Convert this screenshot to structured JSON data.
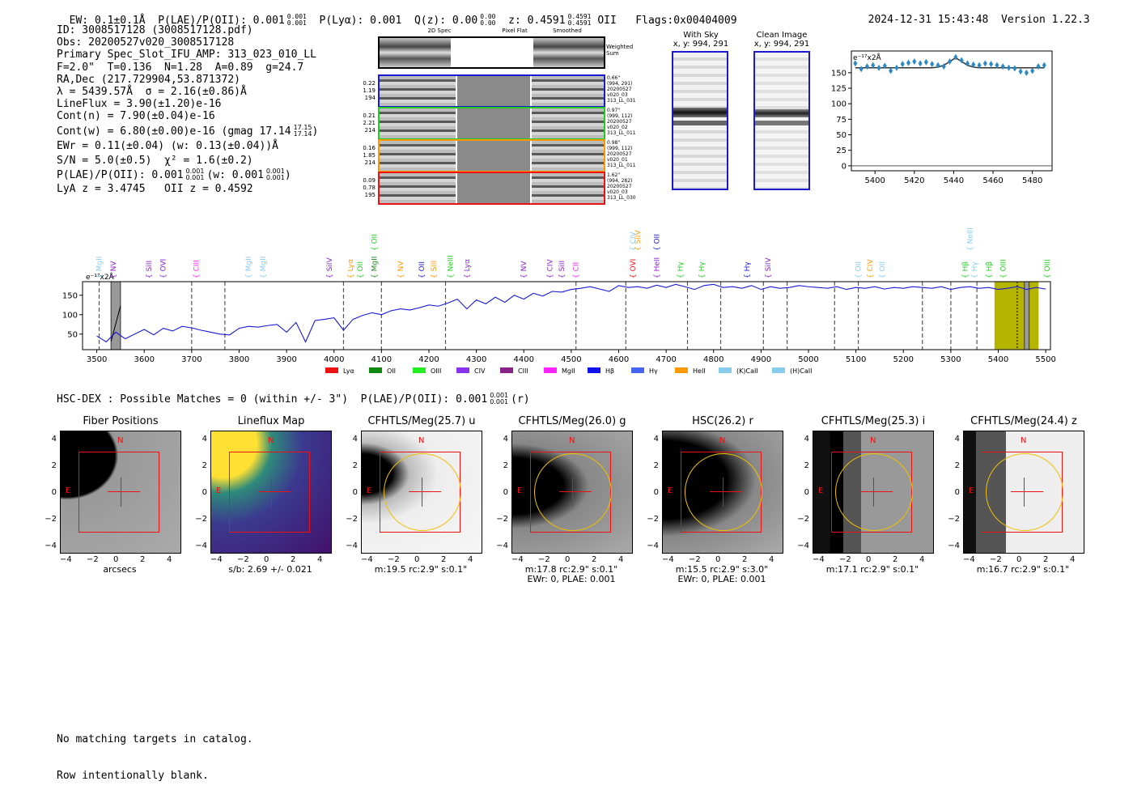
{
  "header": {
    "ew": "EW: 0.1±0.1Å",
    "plae": "P(LAE)/P(OII): 0.001",
    "plae_sup": "0.001",
    "plae_sub": "0.001",
    "plya": "P(Lyα): 0.001",
    "qz": "Q(z): 0.00",
    "qz_sup": "0.00",
    "qz_sub": "0.00",
    "z": "z: 0.4591",
    "z_sup": "0.4591",
    "z_sub": "0.4591",
    "z_line": "OII",
    "flags": "Flags:0x00404009",
    "timestamp": "2024-12-31 15:43:48",
    "version": "Version 1.22.3"
  },
  "info": {
    "lines": [
      "ID: 3008517128 (3008517128.pdf)",
      "Obs: 20200527v020_3008517128",
      "Primary Spec_Slot_IFU_AMP: 313_023_010_LL",
      "F=2.0\"  T=0.136  N=1.28  A=0.89  g=24.7",
      "RA,Dec (217.729904,53.871372)",
      "λ = 5439.57Å  σ = 2.16(±0.86)Å",
      "LineFlux = 3.90(±1.20)e-16",
      "Cont(n) = 7.90(±0.04)e-16"
    ],
    "contw": "Cont(w) = 6.80(±0.00)e-16 (gmag 17.14",
    "contw_sup": "17.15",
    "contw_sub": "17.14",
    "ewr": "EWr = 0.11(±0.04) (w: 0.13(±0.04))Å",
    "sn": "S/N = 5.0(±0.5)  χ² = 1.6(±0.2)",
    "plae2": "P(LAE)/P(OII): 0.001",
    "plae2_sup": "0.001",
    "plae2_sub": "0.001",
    "plae2_w": "(w: 0.001",
    "plae2_w_sup": "0.001",
    "plae2_w_sub": "0.001",
    "lya_oii": "LyA z = 3.4745   OII z = 0.4592"
  },
  "cutouts": {
    "col_titles": [
      "2D Spec",
      "Pixel Flat",
      "Smoothed"
    ],
    "weighted_sum": "Weighted Sum",
    "rows": [
      {
        "left": [
          "0.22",
          "1.19",
          "194"
        ],
        "right": [
          "0.66\"",
          "(994, 291)",
          "20200527",
          "v020_03",
          "313_LL_031"
        ],
        "color": "#1a1acc"
      },
      {
        "left": [
          "0.21",
          "2.21",
          "214"
        ],
        "right": [
          "0.97\"",
          "(999, 112)",
          "20200527",
          "v020_02",
          "313_LL_011"
        ],
        "color": "#22cc22"
      },
      {
        "left": [
          "0.16",
          "1.85",
          "214"
        ],
        "right": [
          "0.98\"",
          "(999, 112)",
          "20200527",
          "v020_01",
          "313_LL_011"
        ],
        "color": "#ff9900"
      },
      {
        "left": [
          "0.09",
          "0.78",
          "195"
        ],
        "right": [
          "1.62\"",
          "(994, 282)",
          "20200527",
          "v020_03",
          "313_LL_030"
        ],
        "color": "#ee1111"
      }
    ],
    "with_sky_title": "With Sky",
    "with_sky_sub": "x, y: 994, 291",
    "clean_title": "Clean Image",
    "clean_sub": "x, y: 994, 291"
  },
  "zoom_chart": {
    "unit_label": "e⁻¹⁷x2Å",
    "chart_data": {
      "type": "line",
      "x": [
        5390,
        5393,
        5396,
        5399,
        5402,
        5405,
        5408,
        5411,
        5414,
        5417,
        5420,
        5423,
        5426,
        5429,
        5432,
        5435,
        5438,
        5441,
        5444,
        5447,
        5450,
        5453,
        5456,
        5459,
        5462,
        5465,
        5468,
        5471,
        5474,
        5477,
        5480,
        5483,
        5486
      ],
      "y": [
        165,
        156,
        160,
        162,
        158,
        161,
        153,
        158,
        164,
        166,
        168,
        165,
        167,
        164,
        162,
        160,
        168,
        175,
        170,
        165,
        163,
        162,
        165,
        164,
        162,
        160,
        158,
        157,
        152,
        150,
        153,
        160,
        162
      ],
      "fit_y": [
        158,
        158,
        158,
        158,
        158,
        158,
        158,
        158,
        158,
        158,
        158,
        158,
        158,
        158,
        159,
        162,
        168,
        174,
        168,
        162,
        159,
        158,
        158,
        158,
        158,
        158,
        158,
        158,
        158,
        158,
        158,
        158,
        158
      ],
      "xlim": [
        5388,
        5490
      ],
      "ylim": [
        -8,
        185
      ],
      "xticks": [
        "5400",
        "5420",
        "5440",
        "5460",
        "5480"
      ],
      "yticks": [
        "0",
        "25",
        "50",
        "75",
        "100",
        "125",
        "150"
      ]
    }
  },
  "spectrum": {
    "unit_label": "e⁻¹⁷x2Å",
    "chart_data": {
      "type": "line",
      "xlim": [
        3470,
        5510
      ],
      "ylim": [
        10,
        185
      ],
      "xticks": [
        "3500",
        "3600",
        "3700",
        "3800",
        "3900",
        "4000",
        "4100",
        "4200",
        "4300",
        "4400",
        "4500",
        "4600",
        "4700",
        "4800",
        "4900",
        "5000",
        "5100",
        "5200",
        "5300",
        "5400",
        "5500"
      ],
      "yticks": [
        "50",
        "100",
        "150"
      ],
      "x": [
        3500,
        3520,
        3540,
        3560,
        3580,
        3600,
        3620,
        3640,
        3660,
        3680,
        3700,
        3720,
        3740,
        3760,
        3780,
        3800,
        3820,
        3840,
        3860,
        3880,
        3900,
        3920,
        3940,
        3960,
        3980,
        4000,
        4020,
        4040,
        4060,
        4080,
        4100,
        4120,
        4140,
        4160,
        4180,
        4200,
        4220,
        4240,
        4260,
        4280,
        4300,
        4320,
        4340,
        4360,
        4380,
        4400,
        4420,
        4440,
        4460,
        4480,
        4500,
        4520,
        4540,
        4560,
        4580,
        4600,
        4620,
        4640,
        4660,
        4680,
        4700,
        4720,
        4740,
        4760,
        4780,
        4800,
        4820,
        4840,
        4860,
        4880,
        4900,
        4920,
        4940,
        4960,
        4980,
        5000,
        5020,
        5040,
        5060,
        5080,
        5100,
        5120,
        5140,
        5160,
        5180,
        5200,
        5220,
        5240,
        5260,
        5280,
        5300,
        5320,
        5340,
        5360,
        5380,
        5400,
        5420,
        5440,
        5460,
        5480,
        5500
      ],
      "y": [
        45,
        30,
        55,
        38,
        50,
        62,
        48,
        65,
        58,
        70,
        66,
        60,
        55,
        50,
        48,
        65,
        70,
        68,
        72,
        75,
        55,
        80,
        30,
        85,
        88,
        92,
        60,
        88,
        98,
        105,
        100,
        110,
        115,
        112,
        118,
        125,
        122,
        130,
        140,
        115,
        138,
        128,
        145,
        132,
        150,
        140,
        155,
        148,
        160,
        158,
        165,
        168,
        172,
        166,
        160,
        175,
        170,
        172,
        168,
        176,
        170,
        178,
        172,
        165,
        175,
        178,
        170,
        172,
        168,
        175,
        165,
        172,
        168,
        170,
        175,
        172,
        170,
        168,
        172,
        165,
        170,
        168,
        172,
        166,
        170,
        168,
        172,
        170,
        168,
        172,
        165,
        170,
        172,
        168,
        170,
        165,
        168,
        172,
        165,
        170,
        166
      ],
      "emission_lines": [
        {
          "label": "MgII",
          "x": 3505,
          "color": "#88ccee"
        },
        {
          "label": "NV",
          "x": 3535,
          "color": "#8822cc"
        },
        {
          "label": "SiII",
          "x": 3610,
          "color": "#8822cc"
        },
        {
          "label": "OVI",
          "x": 3640,
          "color": "#8822cc"
        },
        {
          "label": "CIII",
          "x": 3710,
          "color": "#ff22ff"
        },
        {
          "label": "MgII",
          "x": 3820,
          "color": "#88ccee"
        },
        {
          "label": "MgII",
          "x": 3850,
          "color": "#88ccee"
        },
        {
          "label": "SiIV",
          "x": 3990,
          "color": "#8822cc"
        },
        {
          "label": "Lyα",
          "x": 4035,
          "color": "#ff9900"
        },
        {
          "label": "OII",
          "x": 4055,
          "color": "#22cc22"
        },
        {
          "label": "MgII",
          "x": 4085,
          "color": "#228822"
        },
        {
          "label": "NV",
          "x": 4140,
          "color": "#ff9900"
        },
        {
          "label": "OII",
          "x": 4185,
          "color": "#1a1acc"
        },
        {
          "label": "SiII",
          "x": 4210,
          "color": "#ff9900"
        },
        {
          "label": "NeIII",
          "x": 4245,
          "color": "#22cc22"
        },
        {
          "label": "Lyα",
          "x": 4280,
          "color": "#8822cc"
        },
        {
          "label": "NV",
          "x": 4400,
          "color": "#8822cc"
        },
        {
          "label": "CIV",
          "x": 4455,
          "color": "#8822cc"
        },
        {
          "label": "SiII",
          "x": 4480,
          "color": "#8822cc"
        },
        {
          "label": "CII",
          "x": 4510,
          "color": "#ff22ff"
        },
        {
          "label": "OVI",
          "x": 4630,
          "color": "#ee1111"
        },
        {
          "label": "HeII",
          "x": 4680,
          "color": "#8822cc"
        },
        {
          "label": "Hγ",
          "x": 4730,
          "color": "#22cc22"
        },
        {
          "label": "Hγ",
          "x": 4775,
          "color": "#22cc22"
        },
        {
          "label": "Hγ",
          "x": 4870,
          "color": "#1a1acc"
        },
        {
          "label": "SiIV",
          "x": 4915,
          "color": "#8822cc"
        },
        {
          "label": "OII",
          "x": 5105,
          "color": "#88ccee"
        },
        {
          "label": "CIV",
          "x": 5130,
          "color": "#ff9900"
        },
        {
          "label": "OII",
          "x": 5155,
          "color": "#88ccee"
        },
        {
          "label": "Hβ",
          "x": 5330,
          "color": "#22cc22"
        },
        {
          "label": "Hγ",
          "x": 5350,
          "color": "#88ccee"
        },
        {
          "label": "Hβ",
          "x": 5380,
          "color": "#22cc22"
        },
        {
          "label": "OIII",
          "x": 5410,
          "color": "#22cc22"
        },
        {
          "label": "OIII",
          "x": 5510,
          "color": "#22cc22"
        }
      ],
      "upper_lines": [
        {
          "label": "OII",
          "x": 4085,
          "color": "#22cc22"
        },
        {
          "label": "SiIV",
          "x": 4640,
          "color": "#ff9900"
        },
        {
          "label": "CIV",
          "x": 4630,
          "color": "#88ccee"
        },
        {
          "label": "OII",
          "x": 4680,
          "color": "#1a1acc"
        },
        {
          "label": "NeIII",
          "x": 5340,
          "color": "#88ccee"
        }
      ],
      "dashed_x": [
        3505,
        3700,
        3770,
        4020,
        4100,
        4235,
        4510,
        4615,
        4745,
        4815,
        4905,
        4955,
        5055,
        5105,
        5240,
        5300,
        5355
      ],
      "legend": [
        {
          "label": "Lyα",
          "color": "#ee1111"
        },
        {
          "label": "OII",
          "color": "#118811"
        },
        {
          "label": "OIII",
          "color": "#22ee22"
        },
        {
          "label": "CIV",
          "color": "#8833ee"
        },
        {
          "label": "CIII",
          "color": "#882288"
        },
        {
          "label": "MgII",
          "color": "#ff22ff"
        },
        {
          "label": "Hβ",
          "color": "#1111ee"
        },
        {
          "label": "Hγ",
          "color": "#4466ee"
        },
        {
          "label": "HeII",
          "color": "#ff9900"
        },
        {
          "label": "(K)CaII",
          "color": "#88ccee"
        },
        {
          "label": "(H)CaII",
          "color": "#88ccee"
        }
      ]
    }
  },
  "hsc": {
    "line": "HSC-DEX : Possible Matches = 0 (within +/- 3\")  P(LAE)/P(OII): 0.001",
    "sup": "0.001",
    "sub": "0.001",
    "tail": "(r)"
  },
  "thumbs": [
    {
      "title": "Fiber Positions",
      "cap1": "arcsecs",
      "cap2": ""
    },
    {
      "title": "Lineflux Map",
      "cap1": "s/b: 2.69 +/- 0.021",
      "cap2": ""
    },
    {
      "title": "CFHTLS/Meg(25.7) u",
      "cap1": "m:19.5 rc:2.9\"  s:0.1\"",
      "cap2": ""
    },
    {
      "title": "CFHTLS/Meg(26.0) g",
      "cap1": "m:17.8 rc:2.9\"  s:0.1\"",
      "cap2": "EWr: 0, PLAE: 0.001"
    },
    {
      "title": "HSC(26.2) r",
      "cap1": "m:15.5  rc:2.9\"  s:3.0\"",
      "cap2": "EWr: 0, PLAE: 0.001"
    },
    {
      "title": "CFHTLS/Meg(25.3) i",
      "cap1": "m:17.1 rc:2.9\"  s:0.1\"",
      "cap2": ""
    },
    {
      "title": "CFHTLS/Meg(24.4) z",
      "cap1": "m:16.7 rc:2.9\"  s:0.1\"",
      "cap2": ""
    }
  ],
  "thumb_axis": {
    "xticks": [
      "−4",
      "−2",
      "0",
      "2",
      "4"
    ],
    "yticks": [
      "4",
      "2",
      "0",
      "−2",
      "−4"
    ],
    "n_label": "N",
    "e_label": "E"
  },
  "footer": {
    "line1": "No matching targets in catalog.",
    "line2": "Row intentionally blank."
  }
}
